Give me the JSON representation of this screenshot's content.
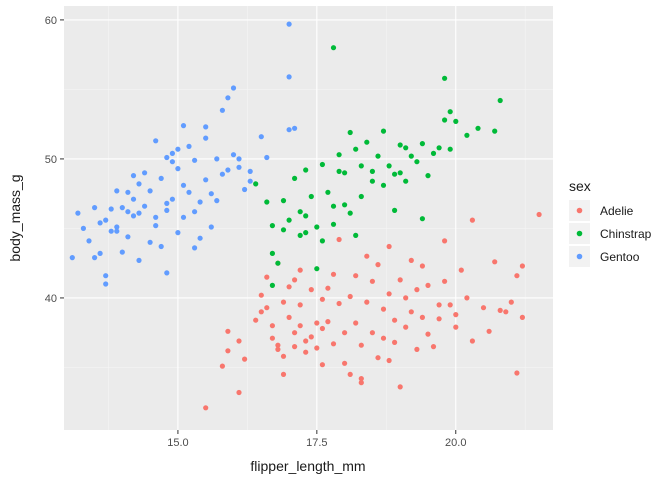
{
  "chart_data": {
    "type": "scatter",
    "title": "",
    "xlabel": "flipper_length_mm",
    "ylabel": "body_mass_g",
    "xlim": [
      12.95,
      21.75
    ],
    "ylim": [
      30.5,
      61.0
    ],
    "x_ticks": [
      15.0,
      17.5,
      20.0
    ],
    "x_tick_labels": [
      "15.0",
      "17.5",
      "20.0"
    ],
    "y_ticks": [
      40,
      50,
      60
    ],
    "y_tick_labels": [
      "40",
      "50",
      "60"
    ],
    "grid": true,
    "background": "#ebebeb",
    "legend": {
      "title": "sex",
      "position": "right"
    },
    "series": [
      {
        "name": "Adelie",
        "color": "#f8766d",
        "points": [
          [
            15.5,
            32.1
          ],
          [
            16.1,
            33.2
          ],
          [
            16.2,
            35.6
          ],
          [
            15.9,
            36.2
          ],
          [
            16.1,
            36.9
          ],
          [
            15.9,
            37.6
          ],
          [
            16.4,
            38.4
          ],
          [
            16.5,
            39.0
          ],
          [
            16.5,
            40.2
          ],
          [
            16.6,
            39.3
          ],
          [
            16.7,
            38.0
          ],
          [
            16.7,
            37.1
          ],
          [
            16.8,
            36.6
          ],
          [
            16.8,
            36.3
          ],
          [
            16.9,
            35.8
          ],
          [
            16.9,
            39.7
          ],
          [
            17.0,
            40.8
          ],
          [
            17.0,
            38.6
          ],
          [
            17.1,
            37.5
          ],
          [
            17.1,
            36.5
          ],
          [
            17.2,
            39.5
          ],
          [
            17.2,
            38.0
          ],
          [
            17.3,
            36.9
          ],
          [
            17.3,
            36.1
          ],
          [
            17.4,
            40.6
          ],
          [
            17.4,
            37.2
          ],
          [
            17.5,
            38.2
          ],
          [
            17.5,
            36.4
          ],
          [
            17.6,
            39.9
          ],
          [
            17.6,
            37.8
          ],
          [
            17.1,
            41.3
          ],
          [
            17.2,
            42.0
          ],
          [
            16.8,
            42.5
          ],
          [
            16.6,
            41.5
          ],
          [
            17.7,
            40.7
          ],
          [
            17.7,
            38.3
          ],
          [
            17.8,
            36.7
          ],
          [
            17.8,
            41.7
          ],
          [
            17.9,
            44.2
          ],
          [
            17.9,
            39.6
          ],
          [
            18.0,
            37.5
          ],
          [
            18.0,
            35.3
          ],
          [
            18.1,
            34.5
          ],
          [
            18.1,
            40.1
          ],
          [
            18.2,
            41.6
          ],
          [
            18.2,
            38.2
          ],
          [
            18.3,
            36.6
          ],
          [
            18.3,
            34.2
          ],
          [
            18.4,
            43.0
          ],
          [
            18.4,
            39.7
          ],
          [
            18.5,
            41.2
          ],
          [
            18.5,
            37.5
          ],
          [
            18.6,
            35.7
          ],
          [
            18.6,
            42.4
          ],
          [
            18.7,
            39.2
          ],
          [
            18.7,
            37.1
          ],
          [
            18.8,
            43.7
          ],
          [
            18.8,
            40.3
          ],
          [
            18.9,
            38.4
          ],
          [
            18.9,
            36.8
          ],
          [
            19.0,
            33.6
          ],
          [
            19.0,
            41.3
          ],
          [
            19.1,
            40.0
          ],
          [
            19.1,
            37.9
          ],
          [
            19.2,
            42.7
          ],
          [
            19.2,
            39.0
          ],
          [
            19.3,
            36.3
          ],
          [
            19.3,
            40.6
          ],
          [
            19.4,
            42.3
          ],
          [
            19.4,
            38.6
          ],
          [
            19.5,
            37.4
          ],
          [
            19.5,
            40.9
          ],
          [
            19.6,
            36.5
          ],
          [
            19.7,
            39.5
          ],
          [
            19.7,
            38.5
          ],
          [
            19.8,
            44.1
          ],
          [
            19.8,
            41.2
          ],
          [
            19.9,
            39.5
          ],
          [
            20.0,
            38.8
          ],
          [
            20.0,
            37.9
          ],
          [
            20.1,
            42.0
          ],
          [
            20.2,
            40.0
          ],
          [
            20.3,
            45.6
          ],
          [
            20.3,
            36.9
          ],
          [
            20.5,
            39.3
          ],
          [
            20.6,
            37.6
          ],
          [
            20.7,
            42.6
          ],
          [
            20.8,
            39.1
          ],
          [
            21.1,
            34.6
          ],
          [
            21.1,
            41.6
          ],
          [
            21.2,
            42.3
          ],
          [
            21.2,
            38.6
          ],
          [
            21.5,
            46.0
          ],
          [
            21.0,
            39.7
          ],
          [
            20.9,
            39.0
          ],
          [
            17.6,
            35.2
          ],
          [
            18.3,
            33.9
          ],
          [
            15.8,
            35.1
          ],
          [
            16.9,
            34.5
          ],
          [
            18.8,
            35.5
          ]
        ]
      },
      {
        "name": "Chinstrap",
        "color": "#00ba38",
        "points": [
          [
            16.4,
            48.2
          ],
          [
            16.6,
            46.9
          ],
          [
            16.7,
            45.2
          ],
          [
            16.7,
            43.2
          ],
          [
            16.8,
            42.5
          ],
          [
            16.7,
            40.9
          ],
          [
            16.9,
            47.0
          ],
          [
            17.0,
            45.6
          ],
          [
            17.1,
            48.6
          ],
          [
            17.2,
            46.2
          ],
          [
            17.2,
            44.5
          ],
          [
            17.3,
            49.2
          ],
          [
            17.3,
            45.9
          ],
          [
            17.4,
            47.3
          ],
          [
            17.5,
            42.1
          ],
          [
            17.5,
            45.1
          ],
          [
            17.6,
            49.6
          ],
          [
            17.7,
            47.6
          ],
          [
            17.8,
            45.3
          ],
          [
            17.8,
            46.6
          ],
          [
            17.8,
            58.0
          ],
          [
            17.9,
            50.3
          ],
          [
            18.0,
            46.7
          ],
          [
            18.0,
            49.0
          ],
          [
            18.1,
            51.9
          ],
          [
            18.2,
            50.7
          ],
          [
            18.3,
            49.5
          ],
          [
            18.3,
            47.3
          ],
          [
            18.4,
            51.2
          ],
          [
            18.5,
            49.1
          ],
          [
            18.6,
            50.2
          ],
          [
            18.7,
            52.0
          ],
          [
            18.7,
            48.1
          ],
          [
            18.8,
            49.5
          ],
          [
            18.9,
            46.3
          ],
          [
            19.0,
            51.0
          ],
          [
            19.1,
            50.8
          ],
          [
            19.1,
            48.4
          ],
          [
            19.2,
            50.2
          ],
          [
            19.3,
            49.8
          ],
          [
            19.4,
            51.1
          ],
          [
            19.5,
            48.8
          ],
          [
            19.6,
            50.4
          ],
          [
            19.7,
            50.8
          ],
          [
            19.8,
            52.8
          ],
          [
            19.8,
            55.8
          ],
          [
            19.9,
            53.4
          ],
          [
            19.9,
            50.7
          ],
          [
            20.0,
            52.7
          ],
          [
            20.2,
            51.7
          ],
          [
            20.4,
            52.2
          ],
          [
            20.7,
            52.0
          ],
          [
            20.8,
            54.2
          ],
          [
            16.9,
            44.9
          ],
          [
            17.3,
            44.7
          ],
          [
            18.1,
            46.1
          ],
          [
            18.9,
            48.9
          ],
          [
            19.4,
            45.7
          ],
          [
            19.0,
            49.0
          ],
          [
            18.5,
            48.4
          ],
          [
            17.9,
            49.1
          ],
          [
            18.2,
            44.5
          ],
          [
            17.6,
            44.1
          ]
        ]
      },
      {
        "name": "Gentoo",
        "color": "#619cff",
        "points": [
          [
            13.1,
            42.9
          ],
          [
            13.2,
            46.1
          ],
          [
            13.3,
            45.0
          ],
          [
            13.4,
            44.1
          ],
          [
            13.5,
            42.9
          ],
          [
            13.5,
            46.5
          ],
          [
            13.6,
            43.2
          ],
          [
            13.6,
            45.4
          ],
          [
            13.7,
            41.0
          ],
          [
            13.7,
            41.6
          ],
          [
            13.8,
            44.8
          ],
          [
            13.8,
            46.4
          ],
          [
            13.9,
            47.7
          ],
          [
            13.9,
            45.1
          ],
          [
            14.0,
            43.3
          ],
          [
            14.0,
            46.5
          ],
          [
            14.1,
            44.4
          ],
          [
            14.1,
            47.6
          ],
          [
            14.2,
            48.8
          ],
          [
            14.2,
            45.9
          ],
          [
            14.3,
            42.7
          ],
          [
            14.3,
            46.1
          ],
          [
            14.4,
            49.0
          ],
          [
            14.4,
            46.6
          ],
          [
            14.5,
            44.0
          ],
          [
            14.5,
            47.7
          ],
          [
            14.6,
            51.3
          ],
          [
            14.6,
            45.2
          ],
          [
            14.7,
            43.7
          ],
          [
            14.7,
            48.6
          ],
          [
            14.8,
            46.3
          ],
          [
            14.8,
            41.8
          ],
          [
            14.9,
            50.4
          ],
          [
            14.9,
            47.1
          ],
          [
            15.0,
            44.7
          ],
          [
            15.0,
            49.3
          ],
          [
            15.1,
            48.1
          ],
          [
            15.1,
            45.8
          ],
          [
            15.2,
            50.9
          ],
          [
            15.2,
            47.6
          ],
          [
            15.3,
            43.6
          ],
          [
            15.3,
            49.9
          ],
          [
            15.4,
            46.9
          ],
          [
            15.5,
            48.5
          ],
          [
            15.5,
            52.3
          ],
          [
            15.6,
            45.1
          ],
          [
            15.7,
            50.0
          ],
          [
            15.7,
            47.0
          ],
          [
            15.8,
            53.5
          ],
          [
            15.8,
            48.9
          ],
          [
            15.9,
            54.4
          ],
          [
            16.0,
            50.3
          ],
          [
            16.0,
            55.1
          ],
          [
            16.1,
            49.4
          ],
          [
            16.2,
            47.8
          ],
          [
            16.3,
            49.1
          ],
          [
            15.4,
            44.3
          ],
          [
            15.6,
            47.5
          ],
          [
            14.9,
            49.8
          ],
          [
            15.1,
            52.4
          ],
          [
            14.3,
            48.2
          ],
          [
            14.1,
            46.2
          ],
          [
            14.6,
            45.8
          ],
          [
            15.3,
            46.2
          ],
          [
            16.1,
            50.0
          ],
          [
            17.0,
            59.7
          ],
          [
            17.0,
            55.9
          ],
          [
            17.0,
            52.1
          ],
          [
            17.1,
            52.2
          ],
          [
            16.6,
            50.1
          ],
          [
            16.5,
            51.6
          ],
          [
            16.3,
            48.4
          ],
          [
            15.9,
            49.2
          ],
          [
            15.5,
            51.5
          ],
          [
            15.0,
            50.7
          ],
          [
            14.8,
            50.1
          ],
          [
            14.2,
            47.1
          ],
          [
            13.9,
            44.8
          ],
          [
            13.7,
            45.6
          ],
          [
            14.8,
            46.8
          ]
        ]
      }
    ]
  }
}
